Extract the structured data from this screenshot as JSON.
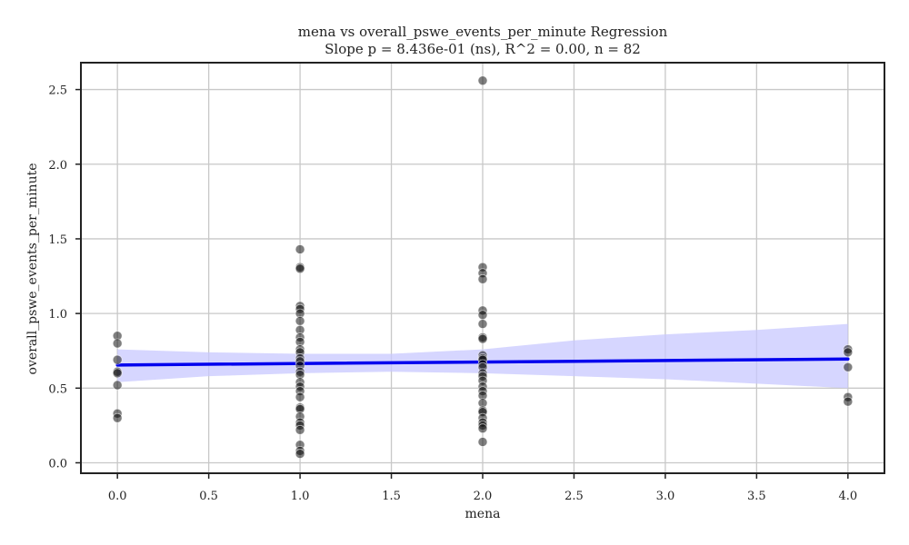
{
  "chart_data": {
    "type": "scatter",
    "title": "mena vs overall_pswe_events_per_minute Regression",
    "subtitle": "Slope p = 8.436e-01 (ns), R^2 = 0.00, n = 82",
    "xlabel": "mena",
    "ylabel": "overall_pswe_events_per_minute",
    "xlim": [
      -0.2,
      4.2
    ],
    "ylim": [
      -0.07,
      2.68
    ],
    "x_ticks": [
      "0.0",
      "0.5",
      "1.0",
      "1.5",
      "2.0",
      "2.5",
      "3.0",
      "3.5",
      "4.0"
    ],
    "y_ticks": [
      "0.0",
      "0.5",
      "1.0",
      "1.5",
      "2.0",
      "2.5"
    ],
    "grid": true,
    "colors": {
      "points": "#000000",
      "regression_line": "#0000ee",
      "confidence_band": "#c8c8ff"
    },
    "points": [
      {
        "x": 0,
        "y": 0.85
      },
      {
        "x": 0,
        "y": 0.8
      },
      {
        "x": 0,
        "y": 0.69
      },
      {
        "x": 0,
        "y": 0.61
      },
      {
        "x": 0,
        "y": 0.6
      },
      {
        "x": 0,
        "y": 0.52
      },
      {
        "x": 0,
        "y": 0.33
      },
      {
        "x": 0,
        "y": 0.3
      },
      {
        "x": 1,
        "y": 1.43
      },
      {
        "x": 1,
        "y": 1.31
      },
      {
        "x": 1,
        "y": 1.3
      },
      {
        "x": 1,
        "y": 1.05
      },
      {
        "x": 1,
        "y": 1.03
      },
      {
        "x": 1,
        "y": 1.0
      },
      {
        "x": 1,
        "y": 0.95
      },
      {
        "x": 1,
        "y": 0.89
      },
      {
        "x": 1,
        "y": 0.84
      },
      {
        "x": 1,
        "y": 0.81
      },
      {
        "x": 1,
        "y": 0.76
      },
      {
        "x": 1,
        "y": 0.74
      },
      {
        "x": 1,
        "y": 0.7
      },
      {
        "x": 1,
        "y": 0.68
      },
      {
        "x": 1,
        "y": 0.65
      },
      {
        "x": 1,
        "y": 0.61
      },
      {
        "x": 1,
        "y": 0.59
      },
      {
        "x": 1,
        "y": 0.54
      },
      {
        "x": 1,
        "y": 0.51
      },
      {
        "x": 1,
        "y": 0.48
      },
      {
        "x": 1,
        "y": 0.44
      },
      {
        "x": 1,
        "y": 0.37
      },
      {
        "x": 1,
        "y": 0.36
      },
      {
        "x": 1,
        "y": 0.31
      },
      {
        "x": 1,
        "y": 0.27
      },
      {
        "x": 1,
        "y": 0.25
      },
      {
        "x": 1,
        "y": 0.22
      },
      {
        "x": 1,
        "y": 0.12
      },
      {
        "x": 1,
        "y": 0.08
      },
      {
        "x": 1,
        "y": 0.06
      },
      {
        "x": 2,
        "y": 2.56
      },
      {
        "x": 2,
        "y": 1.31
      },
      {
        "x": 2,
        "y": 1.27
      },
      {
        "x": 2,
        "y": 1.23
      },
      {
        "x": 2,
        "y": 1.02
      },
      {
        "x": 2,
        "y": 0.99
      },
      {
        "x": 2,
        "y": 0.93
      },
      {
        "x": 2,
        "y": 0.84
      },
      {
        "x": 2,
        "y": 0.83
      },
      {
        "x": 2,
        "y": 0.72
      },
      {
        "x": 2,
        "y": 0.7
      },
      {
        "x": 2,
        "y": 0.69
      },
      {
        "x": 2,
        "y": 0.66
      },
      {
        "x": 2,
        "y": 0.64
      },
      {
        "x": 2,
        "y": 0.6
      },
      {
        "x": 2,
        "y": 0.58
      },
      {
        "x": 2,
        "y": 0.55
      },
      {
        "x": 2,
        "y": 0.51
      },
      {
        "x": 2,
        "y": 0.48
      },
      {
        "x": 2,
        "y": 0.45
      },
      {
        "x": 2,
        "y": 0.4
      },
      {
        "x": 2,
        "y": 0.35
      },
      {
        "x": 2,
        "y": 0.34
      },
      {
        "x": 2,
        "y": 0.3
      },
      {
        "x": 2,
        "y": 0.27
      },
      {
        "x": 2,
        "y": 0.25
      },
      {
        "x": 2,
        "y": 0.23
      },
      {
        "x": 2,
        "y": 0.14
      },
      {
        "x": 4,
        "y": 0.76
      },
      {
        "x": 4,
        "y": 0.74
      },
      {
        "x": 4,
        "y": 0.64
      },
      {
        "x": 4,
        "y": 0.44
      },
      {
        "x": 4,
        "y": 0.41
      }
    ],
    "regression_line": [
      {
        "x": 0,
        "y": 0.655
      },
      {
        "x": 4,
        "y": 0.695
      }
    ],
    "confidence_band": [
      {
        "x": 0.0,
        "lower": 0.54,
        "upper": 0.76
      },
      {
        "x": 0.5,
        "lower": 0.58,
        "upper": 0.74
      },
      {
        "x": 1.0,
        "lower": 0.6,
        "upper": 0.73
      },
      {
        "x": 1.5,
        "lower": 0.61,
        "upper": 0.73
      },
      {
        "x": 2.0,
        "lower": 0.6,
        "upper": 0.76
      },
      {
        "x": 2.5,
        "lower": 0.58,
        "upper": 0.82
      },
      {
        "x": 3.0,
        "lower": 0.56,
        "upper": 0.86
      },
      {
        "x": 3.5,
        "lower": 0.53,
        "upper": 0.89
      },
      {
        "x": 4.0,
        "lower": 0.5,
        "upper": 0.93
      }
    ]
  }
}
